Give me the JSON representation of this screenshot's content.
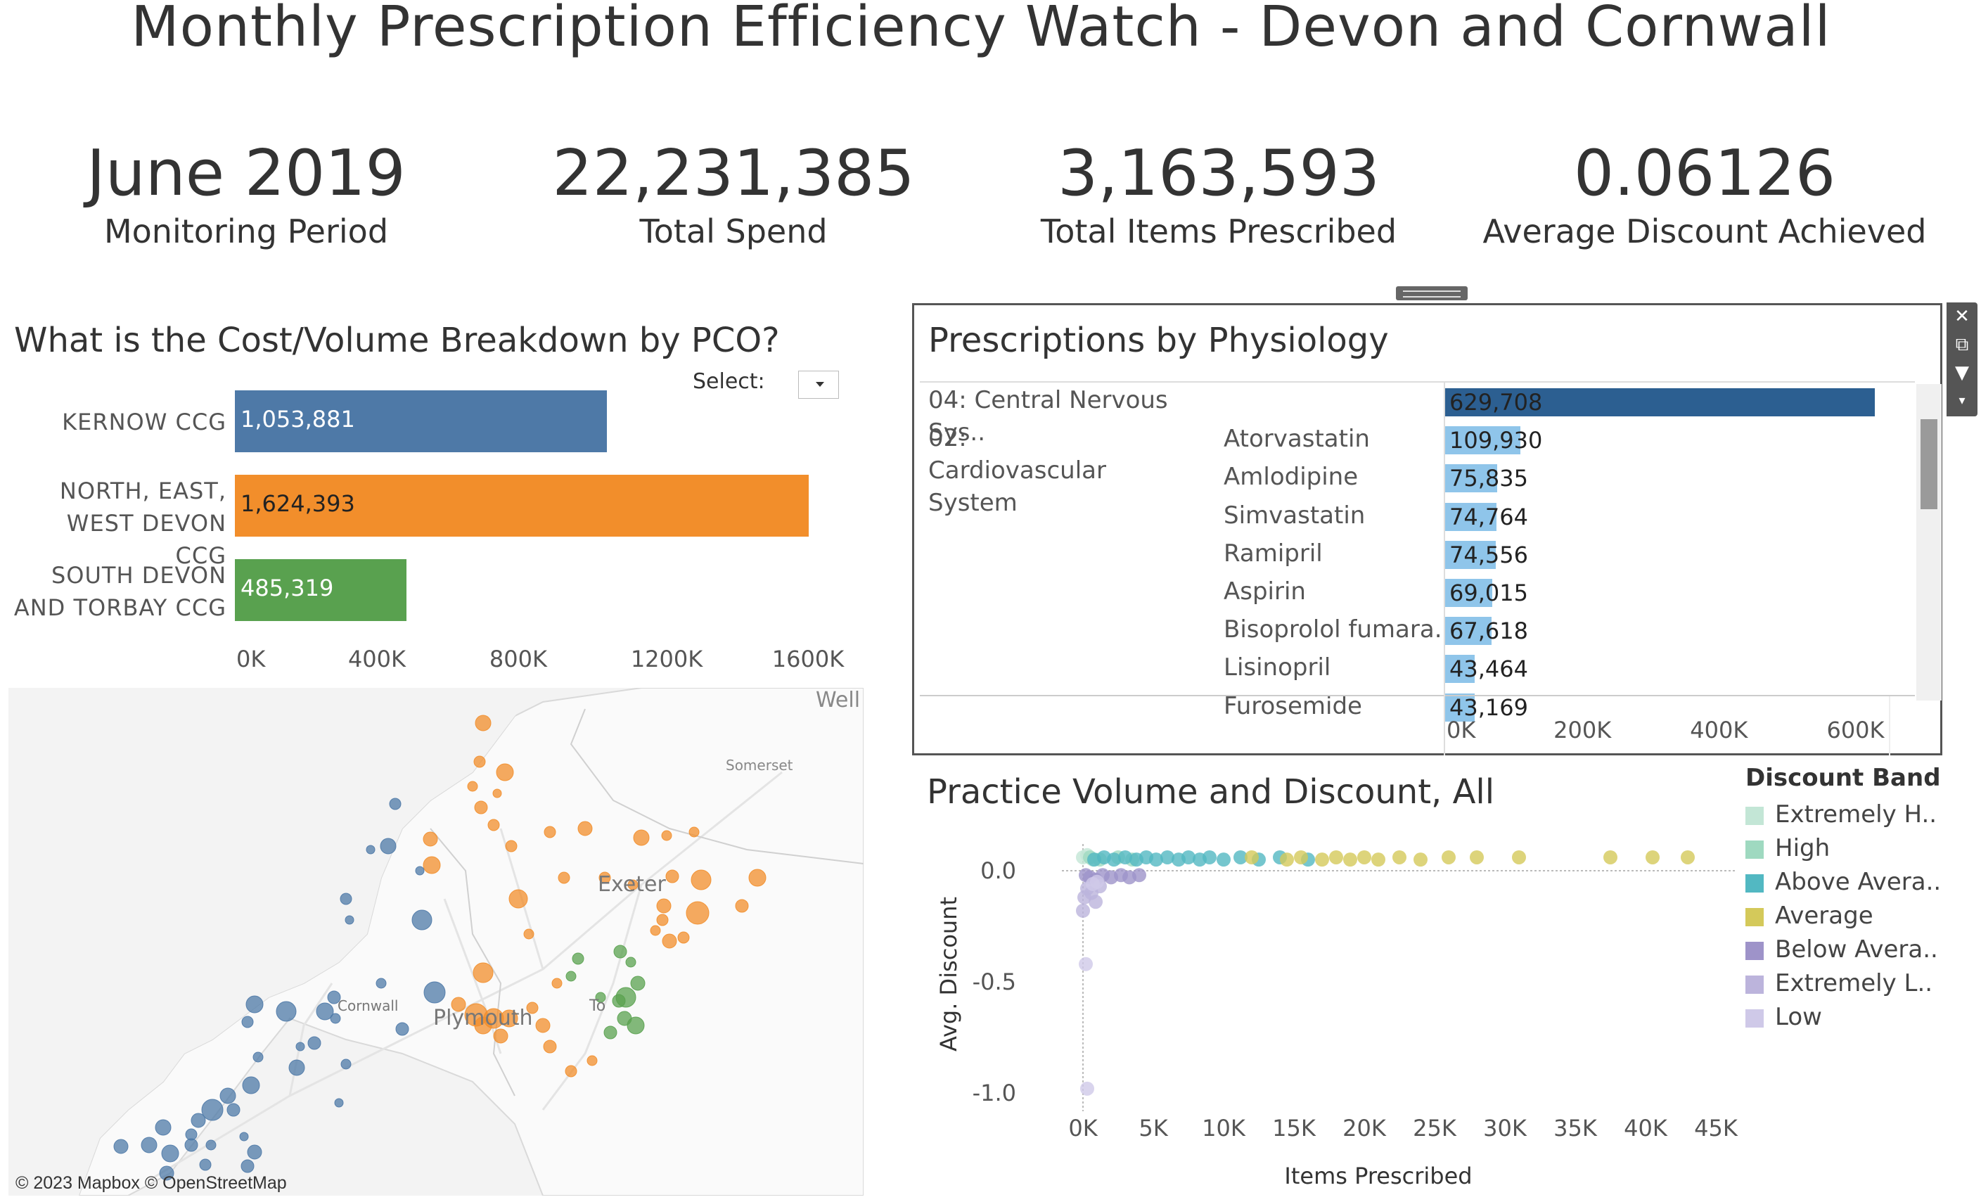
{
  "dashboard": {
    "title": "Monthly Prescription Efficiency Watch -  Devon and Cornwall"
  },
  "kpis": [
    {
      "value": "June 2019",
      "label": "Monitoring Period"
    },
    {
      "value": "22,231,385",
      "label": "Total Spend"
    },
    {
      "value": "3,163,593",
      "label": "Total Items Prescribed"
    },
    {
      "value": "0.06126",
      "label": "Average Discount Achieved"
    }
  ],
  "pco_chart": {
    "title": "What is the Cost/Volume Breakdown by PCO?",
    "select_label": "Select:",
    "axis_ticks": [
      "0K",
      "400K",
      "800K",
      "1200K",
      "1600K"
    ],
    "chart_data": {
      "type": "bar",
      "orientation": "horizontal",
      "categories": [
        [
          "KERNOW CCG"
        ],
        [
          "NORTH, EAST,",
          "WEST DEVON CCG"
        ],
        [
          "SOUTH DEVON",
          "AND TORBAY CCG"
        ]
      ],
      "values": [
        1053881,
        1624393,
        485319
      ],
      "value_labels": [
        "1,053,881",
        "1,624,393",
        "485,319"
      ],
      "colors": [
        "#4e79a7",
        "#f28e2b",
        "#59a14f"
      ],
      "xlim": [
        0,
        1700000
      ]
    }
  },
  "map": {
    "labels": [
      "Well",
      "Somerset",
      "Exeter",
      "Cornwall",
      "Plymouth",
      "To"
    ],
    "credit": "© 2023 Mapbox © OpenStreetMap"
  },
  "physiology": {
    "title": "Prescriptions by Physiology",
    "axis_ticks": [
      "0K",
      "200K",
      "400K",
      "600K"
    ],
    "chart_data": {
      "type": "bar",
      "orientation": "horizontal",
      "xlim": [
        0,
        650000
      ],
      "rows": [
        {
          "category": "04: Central Nervous Sys..",
          "drug": "",
          "value": 629708,
          "label": "629,708",
          "color": "#2c5f91"
        },
        {
          "category": "02: Cardiovascular System",
          "drug": "Atorvastatin",
          "value": 109930,
          "label": "109,930",
          "color": "#8fc5ea"
        },
        {
          "category": "",
          "drug": "Amlodipine",
          "value": 75835,
          "label": "75,835",
          "color": "#8fc5ea"
        },
        {
          "category": "",
          "drug": "Simvastatin",
          "value": 74764,
          "label": "74,764",
          "color": "#8fc5ea"
        },
        {
          "category": "",
          "drug": "Ramipril",
          "value": 74556,
          "label": "74,556",
          "color": "#8fc5ea"
        },
        {
          "category": "",
          "drug": "Aspirin",
          "value": 69015,
          "label": "69,015",
          "color": "#8fc5ea"
        },
        {
          "category": "",
          "drug": "Bisoprolol fumara..",
          "value": 67618,
          "label": "67,618",
          "color": "#8fc5ea"
        },
        {
          "category": "",
          "drug": "Lisinopril",
          "value": 43464,
          "label": "43,464",
          "color": "#8fc5ea"
        },
        {
          "category": "",
          "drug": "Furosemide",
          "value": 43169,
          "label": "43,169",
          "color": "#8fc5ea"
        }
      ]
    }
  },
  "scatter": {
    "title": "Practice Volume and Discount,  All",
    "xlabel": "Items Prescribed",
    "ylabel": "Avg. Discount",
    "x_ticks": [
      "0K",
      "5K",
      "10K",
      "15K",
      "20K",
      "25K",
      "30K",
      "35K",
      "40K",
      "45K"
    ],
    "y_ticks": [
      "0.0",
      "-0.5",
      "-1.0"
    ],
    "chart_data": {
      "type": "scatter",
      "xlim": [
        -1500,
        46500
      ],
      "ylim": [
        -1.05,
        0.12
      ],
      "series": [
        {
          "name": "Extremely H..",
          "color": "#c3e6d6",
          "points": [
            [
              0,
              0.06
            ],
            [
              300,
              0.07
            ],
            [
              700,
              0.05
            ]
          ]
        },
        {
          "name": "High",
          "color": "#9fd9c0",
          "points": [
            [
              500,
              0.06
            ],
            [
              1200,
              0.05
            ],
            [
              2500,
              0.06
            ],
            [
              3500,
              0.05
            ]
          ]
        },
        {
          "name": "Above Avera..",
          "color": "#52b8c2",
          "points": [
            [
              800,
              0.05
            ],
            [
              1500,
              0.06
            ],
            [
              2200,
              0.05
            ],
            [
              3000,
              0.06
            ],
            [
              3800,
              0.05
            ],
            [
              4500,
              0.06
            ],
            [
              5200,
              0.05
            ],
            [
              6000,
              0.06
            ],
            [
              6800,
              0.05
            ],
            [
              7500,
              0.06
            ],
            [
              8300,
              0.05
            ],
            [
              9000,
              0.06
            ],
            [
              10000,
              0.05
            ],
            [
              11200,
              0.06
            ],
            [
              12500,
              0.05
            ],
            [
              14000,
              0.06
            ],
            [
              16000,
              0.05
            ]
          ]
        },
        {
          "name": "Average",
          "color": "#d4c95a",
          "points": [
            [
              12000,
              0.06
            ],
            [
              14500,
              0.05
            ],
            [
              15500,
              0.06
            ],
            [
              17000,
              0.05
            ],
            [
              18000,
              0.06
            ],
            [
              19000,
              0.05
            ],
            [
              20000,
              0.06
            ],
            [
              21000,
              0.05
            ],
            [
              22500,
              0.06
            ],
            [
              24000,
              0.05
            ],
            [
              26000,
              0.06
            ],
            [
              28000,
              0.06
            ],
            [
              31000,
              0.06
            ],
            [
              37500,
              0.06
            ],
            [
              40500,
              0.06
            ],
            [
              43000,
              0.06
            ]
          ]
        },
        {
          "name": "Below Avera..",
          "color": "#9e93c9",
          "points": [
            [
              200,
              -0.02
            ],
            [
              500,
              -0.03
            ],
            [
              900,
              -0.04
            ],
            [
              1400,
              -0.02
            ],
            [
              2000,
              -0.03
            ],
            [
              2700,
              -0.02
            ],
            [
              3300,
              -0.03
            ],
            [
              4000,
              -0.02
            ]
          ]
        },
        {
          "name": "Extremely L..",
          "color": "#bcb4dc",
          "points": [
            [
              100,
              -0.12
            ],
            [
              300,
              -0.08
            ],
            [
              600,
              -0.1
            ],
            [
              1200,
              -0.07
            ],
            [
              0,
              -0.18
            ],
            [
              900,
              -0.14
            ]
          ]
        },
        {
          "name": "Low",
          "color": "#cfc9e8",
          "points": [
            [
              200,
              -0.42
            ],
            [
              300,
              -0.98
            ],
            [
              700,
              -0.06
            ],
            [
              1000,
              -0.05
            ]
          ]
        }
      ]
    }
  }
}
